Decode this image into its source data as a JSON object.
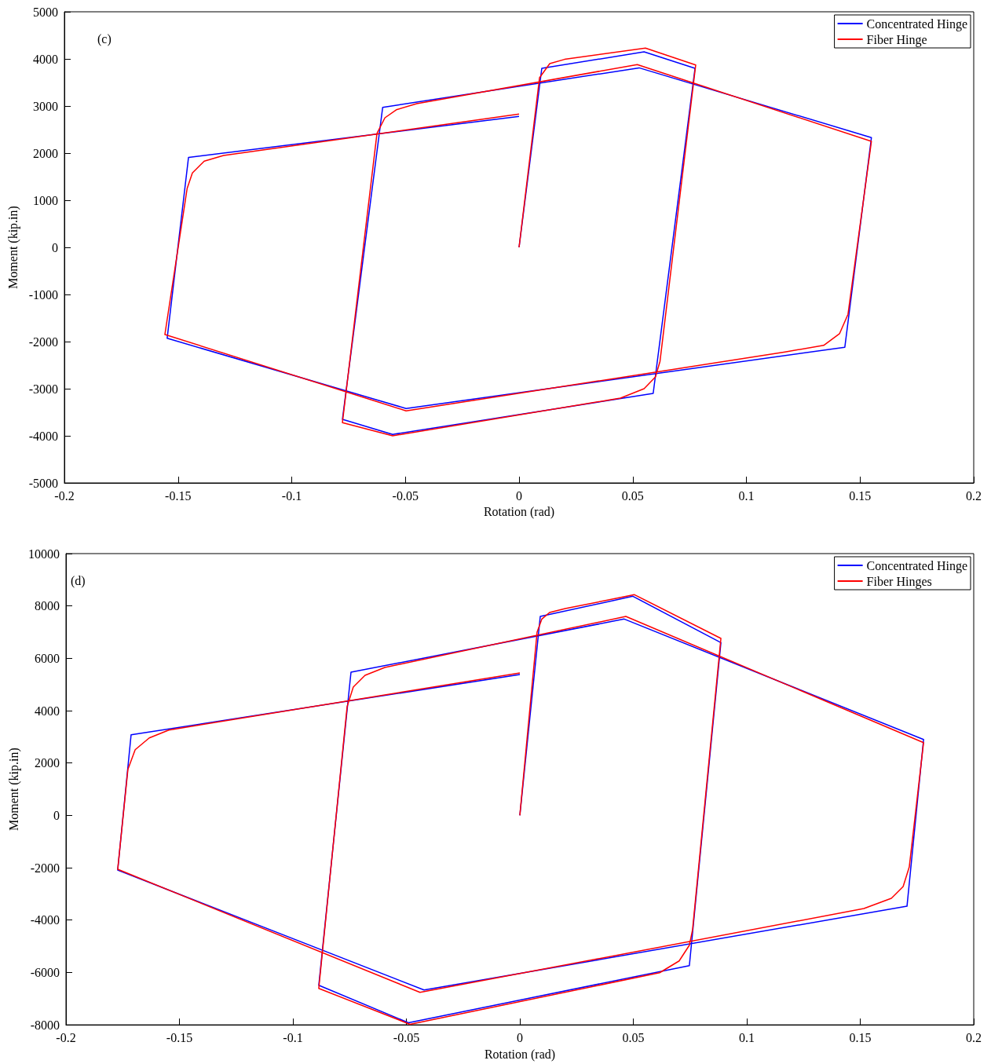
{
  "chart_data": [
    {
      "type": "line",
      "xlabel": "Rotation (rad)",
      "ylabel": "Moment (kip.in)",
      "annotations": [
        "(c)"
      ],
      "legend": "top right",
      "xlim": [
        -0.2,
        0.2
      ],
      "xticks": [
        -0.2,
        -0.15,
        -0.1,
        -0.05,
        0,
        0.05,
        0.1,
        0.15,
        0.2
      ],
      "ylim": [
        -5000,
        5000
      ],
      "yticks": [
        -5000,
        -4000,
        -3000,
        -2000,
        -1000,
        0,
        1000,
        2000,
        3000,
        4000,
        5000
      ],
      "series": [
        {
          "name": "Concentrated Hinge",
          "color": "#0000ff",
          "x": [
            0,
            0.01,
            0.055,
            0.0774,
            0.059,
            -0.0556,
            -0.0777,
            -0.06,
            0.0528,
            0.155,
            0.1433,
            -0.0497,
            -0.1548,
            -0.1454,
            0
          ],
          "values": [
            0,
            3800,
            4150,
            3800,
            -3100,
            -3970,
            -3650,
            2970,
            3810,
            2330,
            -2120,
            -3420,
            -1930,
            1910,
            2780
          ]
        },
        {
          "name": "Fiber Hinge",
          "color": "#ff0000",
          "x": [
            0,
            0.009,
            0.0135,
            0.02,
            0.0556,
            0.0777,
            0.062,
            0.06,
            0.055,
            0.0446,
            -0.0556,
            -0.0777,
            -0.0625,
            -0.059,
            -0.054,
            -0.045,
            0.052,
            0.155,
            0.1447,
            0.141,
            0.134,
            0.117,
            -0.0497,
            -0.1558,
            -0.146,
            -0.1437,
            -0.1385,
            -0.13,
            0
          ],
          "values": [
            0,
            3600,
            3900,
            3990,
            4230,
            3870,
            -2420,
            -2750,
            -3000,
            -3200,
            -4000,
            -3720,
            2420,
            2750,
            2920,
            3050,
            3880,
            2250,
            -1420,
            -1830,
            -2080,
            -2220,
            -3470,
            -1850,
            1250,
            1580,
            1830,
            1950,
            2830
          ]
        }
      ]
    },
    {
      "type": "line",
      "xlabel": "Rotation (rad)",
      "ylabel": "Moment (kip.in)",
      "annotations": [
        "(d)"
      ],
      "legend": "top right",
      "xlim": [
        -0.2,
        0.2
      ],
      "xticks": [
        -0.2,
        -0.15,
        -0.1,
        -0.05,
        0,
        0.05,
        0.1,
        0.15,
        0.2
      ],
      "ylim": [
        -8000,
        10000
      ],
      "yticks": [
        -8000,
        -6000,
        -4000,
        -2000,
        0,
        2000,
        4000,
        6000,
        8000,
        10000
      ],
      "series": [
        {
          "name": "Concentrated Hinge",
          "color": "#0000ff",
          "x": [
            0,
            0.009,
            0.0498,
            0.0886,
            0.0747,
            -0.0491,
            -0.0886,
            -0.0744,
            0.046,
            0.1779,
            0.1706,
            -0.0422,
            -0.1772,
            -0.1713,
            0
          ],
          "values": [
            0,
            7600,
            8370,
            6600,
            -5740,
            -7920,
            -6490,
            5470,
            7500,
            2900,
            -3470,
            -6670,
            -2090,
            3080,
            5380
          ]
        },
        {
          "name": "Fiber Hinges",
          "color": "#ff0000",
          "x": [
            0,
            0.0076,
            0.0097,
            0.0131,
            0.02,
            0.0505,
            0.0886,
            0.0761,
            0.0747,
            0.0702,
            0.0616,
            -0.0484,
            -0.0886,
            -0.0761,
            -0.0734,
            -0.0682,
            -0.0595,
            0.0467,
            0.1779,
            0.1716,
            0.1689,
            0.1637,
            0.1516,
            -0.044,
            -0.1772,
            -0.1727,
            -0.1695,
            -0.1633,
            -0.1547,
            0
          ],
          "values": [
            0,
            7000,
            7500,
            7750,
            7900,
            8430,
            6760,
            -4370,
            -4960,
            -5560,
            -6010,
            -7980,
            -6610,
            4160,
            4900,
            5350,
            5650,
            7600,
            2780,
            -1970,
            -2720,
            -3170,
            -3560,
            -6760,
            -2060,
            1760,
            2510,
            2960,
            3260,
            5440
          ]
        }
      ]
    }
  ]
}
